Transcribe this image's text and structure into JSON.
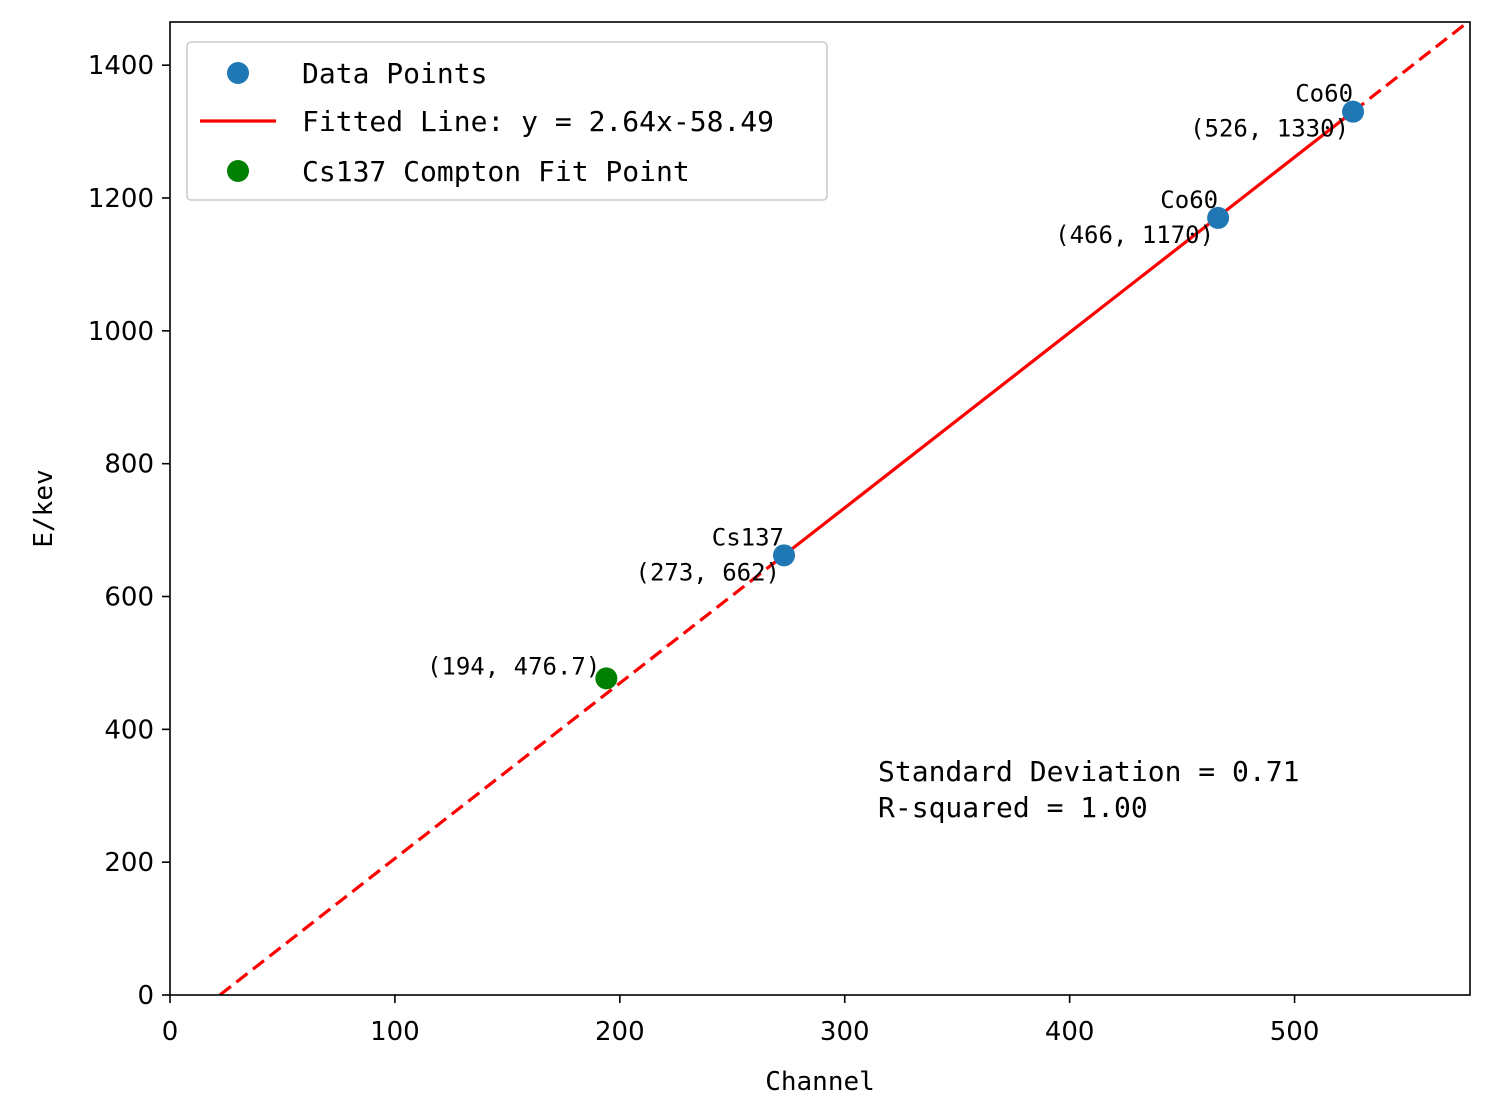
{
  "chart_data": {
    "type": "scatter",
    "xlabel": "Channel",
    "ylabel": "E/kev",
    "xlim": [
      0,
      578
    ],
    "ylim": [
      0,
      1465
    ],
    "x_ticks": [
      0,
      100,
      200,
      300,
      400,
      500
    ],
    "y_ticks": [
      0,
      200,
      400,
      600,
      800,
      1000,
      1200,
      1400
    ],
    "grid": false,
    "legend_position": "top-left",
    "series": [
      {
        "name": "Data Points",
        "kind": "scatter",
        "color": "#1f77b4",
        "points": [
          {
            "x": 273,
            "y": 662,
            "label": "Cs137",
            "coord_label": "(273, 662)"
          },
          {
            "x": 466,
            "y": 1170,
            "label": "Co60",
            "coord_label": "(466, 1170)"
          },
          {
            "x": 526,
            "y": 1330,
            "label": "Co60",
            "coord_label": "(526, 1330)"
          }
        ]
      },
      {
        "name": "Fitted Line: y = 2.64x-58.49",
        "kind": "line",
        "color": "#ff0000",
        "slope": 2.64,
        "intercept": -58.49,
        "solid_range": [
          273,
          526
        ]
      },
      {
        "name": "Cs137 Compton Fit Point",
        "kind": "scatter",
        "color": "#008000",
        "points": [
          {
            "x": 194,
            "y": 476.7,
            "coord_label": "(194, 476.7)"
          }
        ]
      }
    ],
    "annotations": {
      "std_dev": "Standard Deviation = 0.71",
      "r_squared": "R-squared = 1.00"
    }
  }
}
